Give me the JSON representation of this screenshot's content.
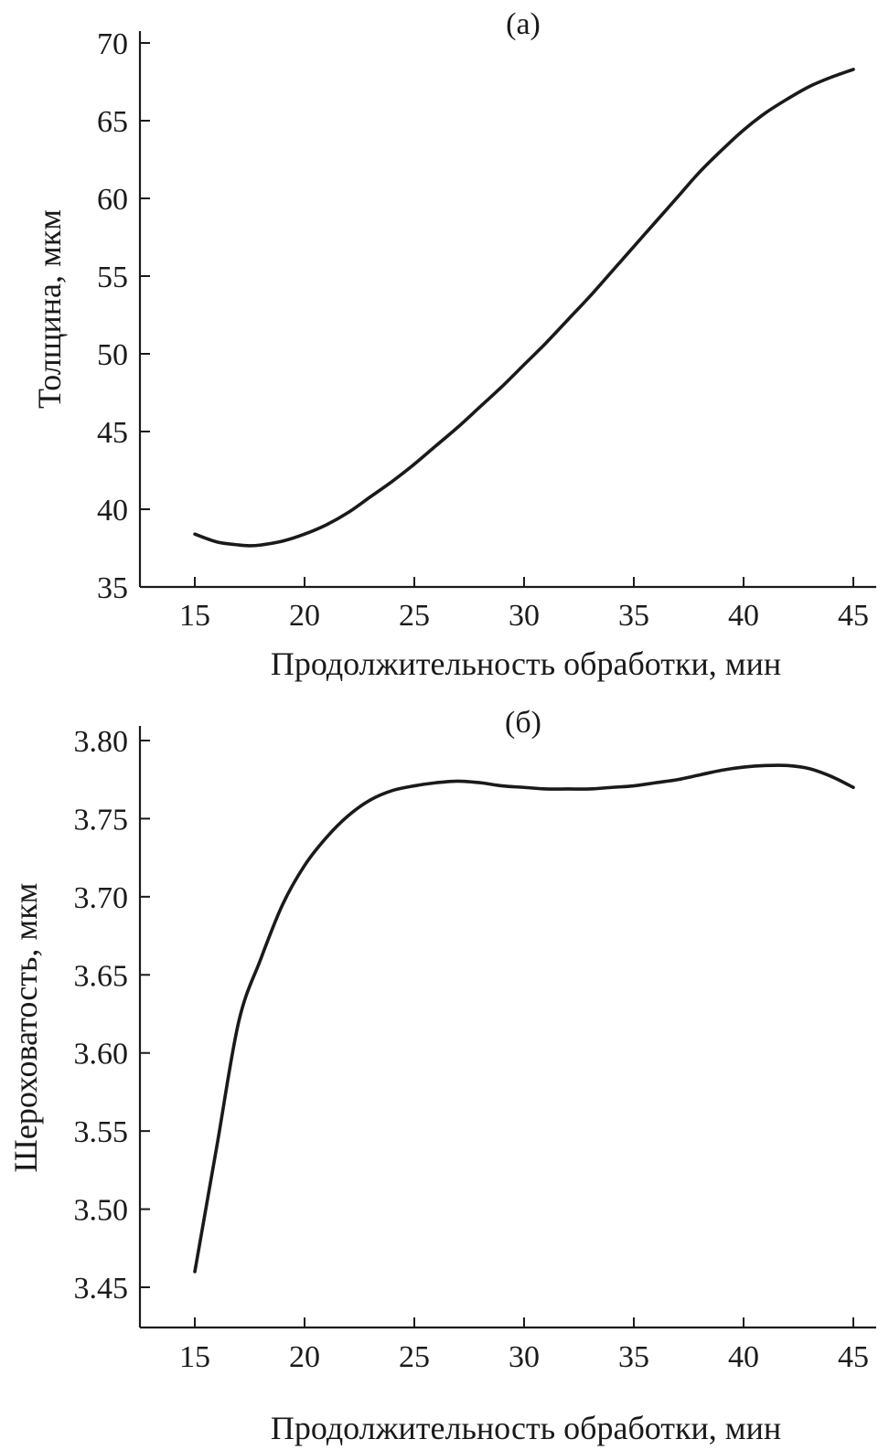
{
  "chart_data": [
    {
      "type": "line",
      "title": "(а)",
      "xlabel": "Продолжительность обработки, мин",
      "ylabel": "Толщина, мкм",
      "xlim": [
        12.5,
        46
      ],
      "ylim": [
        35,
        71
      ],
      "xticks": [
        15,
        20,
        25,
        30,
        35,
        40,
        45
      ],
      "yticks": [
        35,
        40,
        45,
        50,
        55,
        60,
        65,
        70
      ],
      "xtick_labels": [
        "15",
        "20",
        "25",
        "30",
        "35",
        "40",
        "45"
      ],
      "ytick_labels": [
        "35",
        "40",
        "45",
        "50",
        "55",
        "60",
        "65",
        "70"
      ],
      "grid": false,
      "series": [
        {
          "x": [
            15,
            16,
            17,
            17.5,
            18,
            19,
            20,
            21,
            22,
            23,
            24,
            25,
            26,
            27,
            28,
            29,
            30,
            31,
            32,
            33,
            34,
            35,
            36,
            37,
            38,
            39,
            40,
            41,
            42,
            43,
            44,
            45
          ],
          "y": [
            38.4,
            37.9,
            37.7,
            37.65,
            37.7,
            37.95,
            38.4,
            39.0,
            39.8,
            40.8,
            41.8,
            42.9,
            44.1,
            45.3,
            46.6,
            47.9,
            49.3,
            50.7,
            52.2,
            53.7,
            55.3,
            56.9,
            58.5,
            60.1,
            61.7,
            63.1,
            64.4,
            65.5,
            66.4,
            67.2,
            67.8,
            68.3
          ]
        }
      ]
    },
    {
      "type": "line",
      "title": "(б)",
      "xlabel": "Продолжительность обработки, мин",
      "ylabel": "Шероховатость, мкм",
      "xlim": [
        12.5,
        46
      ],
      "ylim": [
        3.42,
        3.81
      ],
      "xticks": [
        15,
        20,
        25,
        30,
        35,
        40,
        45
      ],
      "yticks": [
        3.45,
        3.5,
        3.55,
        3.6,
        3.65,
        3.7,
        3.75,
        3.8
      ],
      "xtick_labels": [
        "15",
        "20",
        "25",
        "30",
        "35",
        "40",
        "45"
      ],
      "ytick_labels": [
        "3.45",
        "3.50",
        "3.55",
        "3.60",
        "3.65",
        "3.70",
        "3.75",
        "3.80"
      ],
      "grid": false,
      "series": [
        {
          "x": [
            15,
            16,
            17,
            18,
            19,
            20,
            21,
            22,
            23,
            24,
            25,
            26,
            27,
            28,
            29,
            30,
            31,
            32,
            33,
            34,
            35,
            36,
            37,
            38,
            39,
            40,
            41,
            42,
            43,
            44,
            45
          ],
          "y": [
            3.46,
            3.54,
            3.62,
            3.66,
            3.695,
            3.72,
            3.738,
            3.752,
            3.762,
            3.768,
            3.771,
            3.773,
            3.774,
            3.773,
            3.771,
            3.77,
            3.769,
            3.769,
            3.769,
            3.77,
            3.771,
            3.773,
            3.775,
            3.778,
            3.781,
            3.783,
            3.784,
            3.784,
            3.782,
            3.777,
            3.77
          ]
        }
      ]
    }
  ]
}
